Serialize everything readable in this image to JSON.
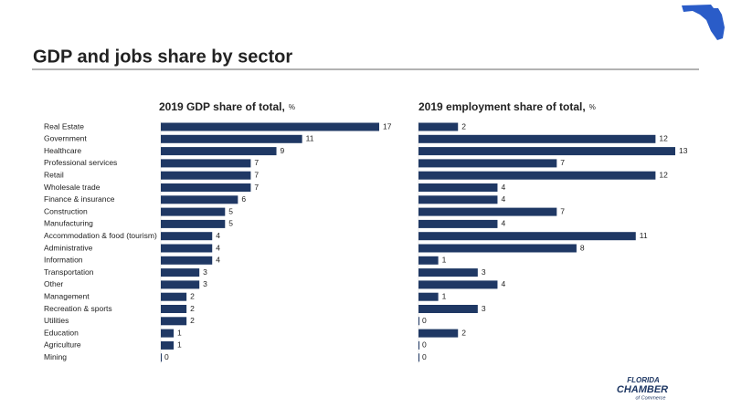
{
  "slide_title": "GDP and jobs share by sector",
  "logo": {
    "line1": "FLORIDA",
    "line2": "CHAMBER",
    "line3": "of Commerce"
  },
  "chart_data": [
    {
      "type": "bar",
      "orientation": "horizontal",
      "title": "2019 GDP share of total,",
      "unit": "%",
      "color": "#1f3864",
      "categories": [
        "Real Estate",
        "Government",
        "Healthcare",
        "Professional services",
        "Retail",
        "Wholesale trade",
        "Finance & insurance",
        "Construction",
        "Manufacturing",
        "Accommodation & food (tourism)",
        "Administrative",
        "Information",
        "Transportation",
        "Other",
        "Management",
        "Recreation & sports",
        "Utilities",
        "Education",
        "Agriculture",
        "Mining"
      ],
      "values": [
        17,
        11,
        9,
        7,
        7,
        7,
        6,
        5,
        5,
        4,
        4,
        4,
        3,
        3,
        2,
        2,
        2,
        1,
        1,
        0
      ]
    },
    {
      "type": "bar",
      "orientation": "horizontal",
      "title": "2019 employment share of total,",
      "unit": "%",
      "color": "#1f3864",
      "values": [
        2,
        12,
        13,
        7,
        12,
        4,
        4,
        7,
        4,
        11,
        8,
        1,
        3,
        4,
        1,
        3,
        0,
        2,
        0,
        0
      ]
    }
  ]
}
